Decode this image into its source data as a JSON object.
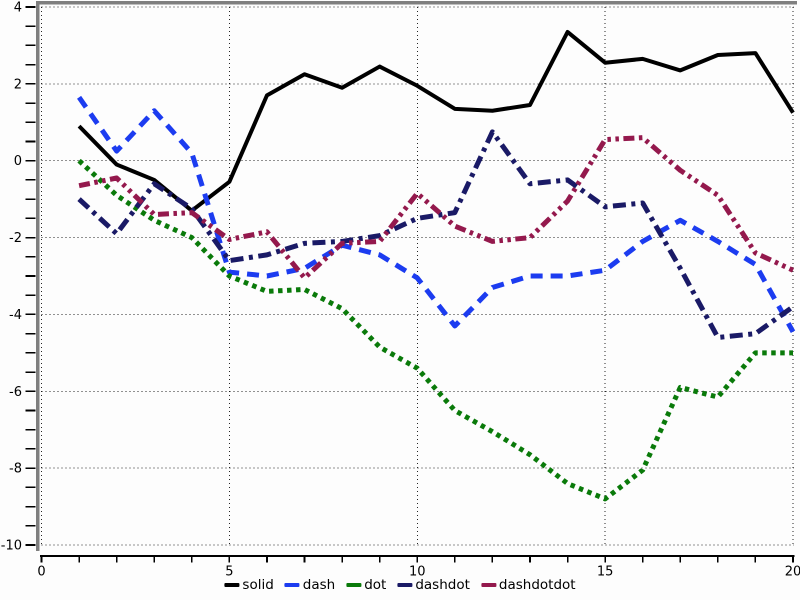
{
  "chart_data": {
    "type": "line",
    "title": "",
    "x": [
      1,
      2,
      3,
      4,
      5,
      6,
      7,
      8,
      9,
      10,
      11,
      12,
      13,
      14,
      15,
      16,
      17,
      18,
      19,
      20
    ],
    "series": [
      {
        "name": "solid",
        "color": "#000000",
        "dash_style": "solid",
        "line_width": 4,
        "values": [
          0.9,
          -0.1,
          -0.5,
          -1.3,
          -0.55,
          1.7,
          2.25,
          1.9,
          2.45,
          1.95,
          1.35,
          1.3,
          1.45,
          3.35,
          2.55,
          2.65,
          2.35,
          2.75,
          2.8,
          1.25
        ]
      },
      {
        "name": "dash",
        "color": "#1c3cf0",
        "dash_style": "dash",
        "line_width": 5,
        "values": [
          1.65,
          0.25,
          1.3,
          0.2,
          -2.9,
          -3.0,
          -2.8,
          -2.2,
          -2.45,
          -3.05,
          -4.3,
          -3.3,
          -3.0,
          -3.0,
          -2.85,
          -2.1,
          -1.55,
          -2.1,
          -2.7,
          -4.45
        ]
      },
      {
        "name": "dot",
        "color": "#0a7a0a",
        "dash_style": "dot",
        "line_width": 5,
        "values": [
          0.0,
          -0.9,
          -1.55,
          -2.0,
          -3.0,
          -3.4,
          -3.35,
          -3.85,
          -4.85,
          -5.4,
          -6.5,
          -7.05,
          -7.65,
          -8.4,
          -8.8,
          -8.05,
          -5.9,
          -6.15,
          -5.0,
          -5.0
        ]
      },
      {
        "name": "dashdot",
        "color": "#1a1a66",
        "dash_style": "dashdot",
        "line_width": 5,
        "values": [
          -1.0,
          -1.9,
          -0.6,
          -1.25,
          -2.6,
          -2.45,
          -2.15,
          -2.1,
          -1.95,
          -1.5,
          -1.35,
          0.75,
          -0.6,
          -0.5,
          -1.2,
          -1.1,
          -2.8,
          -4.6,
          -4.5,
          -3.8
        ]
      },
      {
        "name": "dashdotdot",
        "color": "#94194d",
        "dash_style": "dashdotdot",
        "line_width": 5,
        "values": [
          -0.65,
          -0.45,
          -1.4,
          -1.35,
          -2.05,
          -1.85,
          -3.05,
          -2.15,
          -2.1,
          -0.85,
          -1.7,
          -2.1,
          -2.0,
          -1.05,
          0.55,
          0.6,
          -0.25,
          -0.9,
          -2.4,
          -2.85
        ]
      }
    ],
    "xlim": [
      0,
      20
    ],
    "ylim": [
      -10,
      4
    ],
    "x_tick_values": [
      0,
      5,
      10,
      15,
      20
    ],
    "x_tick_labels": [
      "0",
      "5",
      "10",
      "15",
      "20"
    ],
    "y_tick_values": [
      4,
      2,
      0,
      -2,
      -4,
      -6,
      -8,
      -10
    ],
    "y_tick_labels": [
      "4",
      "2",
      "0",
      "-2",
      "-4",
      "-6",
      "-8",
      "-10"
    ],
    "x_minor_tick_step": 1,
    "y_minor_tick_step": 0.5,
    "grid": "dotted",
    "grid_color": "#000000",
    "frame_color": "#7f7f7f",
    "axis_color": "#000000",
    "legend_position": "bottom-center",
    "legend_labels": [
      "solid",
      "dash",
      "dot",
      "dashdot",
      "dashdotdot"
    ]
  }
}
